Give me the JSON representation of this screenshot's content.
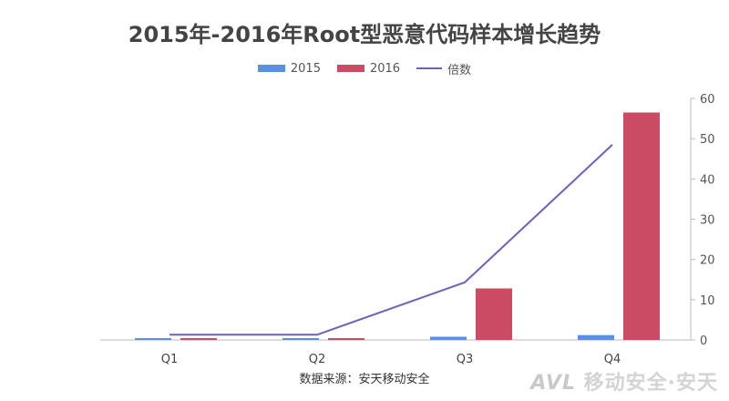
{
  "title": "2015年-2016年Root型恶意代码样本增长趋势",
  "source": "数据来源：安天移动安全",
  "watermark": {
    "logo_text": "AVL",
    "text": "移动安全·安天"
  },
  "colors": {
    "series_2015": "#5b8fe6",
    "series_2016": "#cc4b64",
    "line": "#6e5fc3",
    "axis": "#bbbbbb",
    "tick_text": "#555555"
  },
  "chart_data": {
    "type": "bar",
    "categories": [
      "Q1",
      "Q2",
      "Q3",
      "Q4"
    ],
    "series": [
      {
        "name": "2015",
        "type": "bar",
        "values": [
          0.2,
          0.3,
          0.8,
          1.2
        ]
      },
      {
        "name": "2016",
        "type": "bar",
        "values": [
          0.4,
          0.4,
          12.8,
          56.5
        ]
      },
      {
        "name": "倍数",
        "type": "line",
        "values": [
          1.3,
          1.3,
          14.3,
          48.5
        ]
      }
    ],
    "ylim": [
      0,
      60
    ],
    "y_ticks": [
      0,
      10,
      20,
      30,
      40,
      50,
      60
    ],
    "y_axis_position": "right",
    "grid": false,
    "legend_position": "top-center"
  }
}
